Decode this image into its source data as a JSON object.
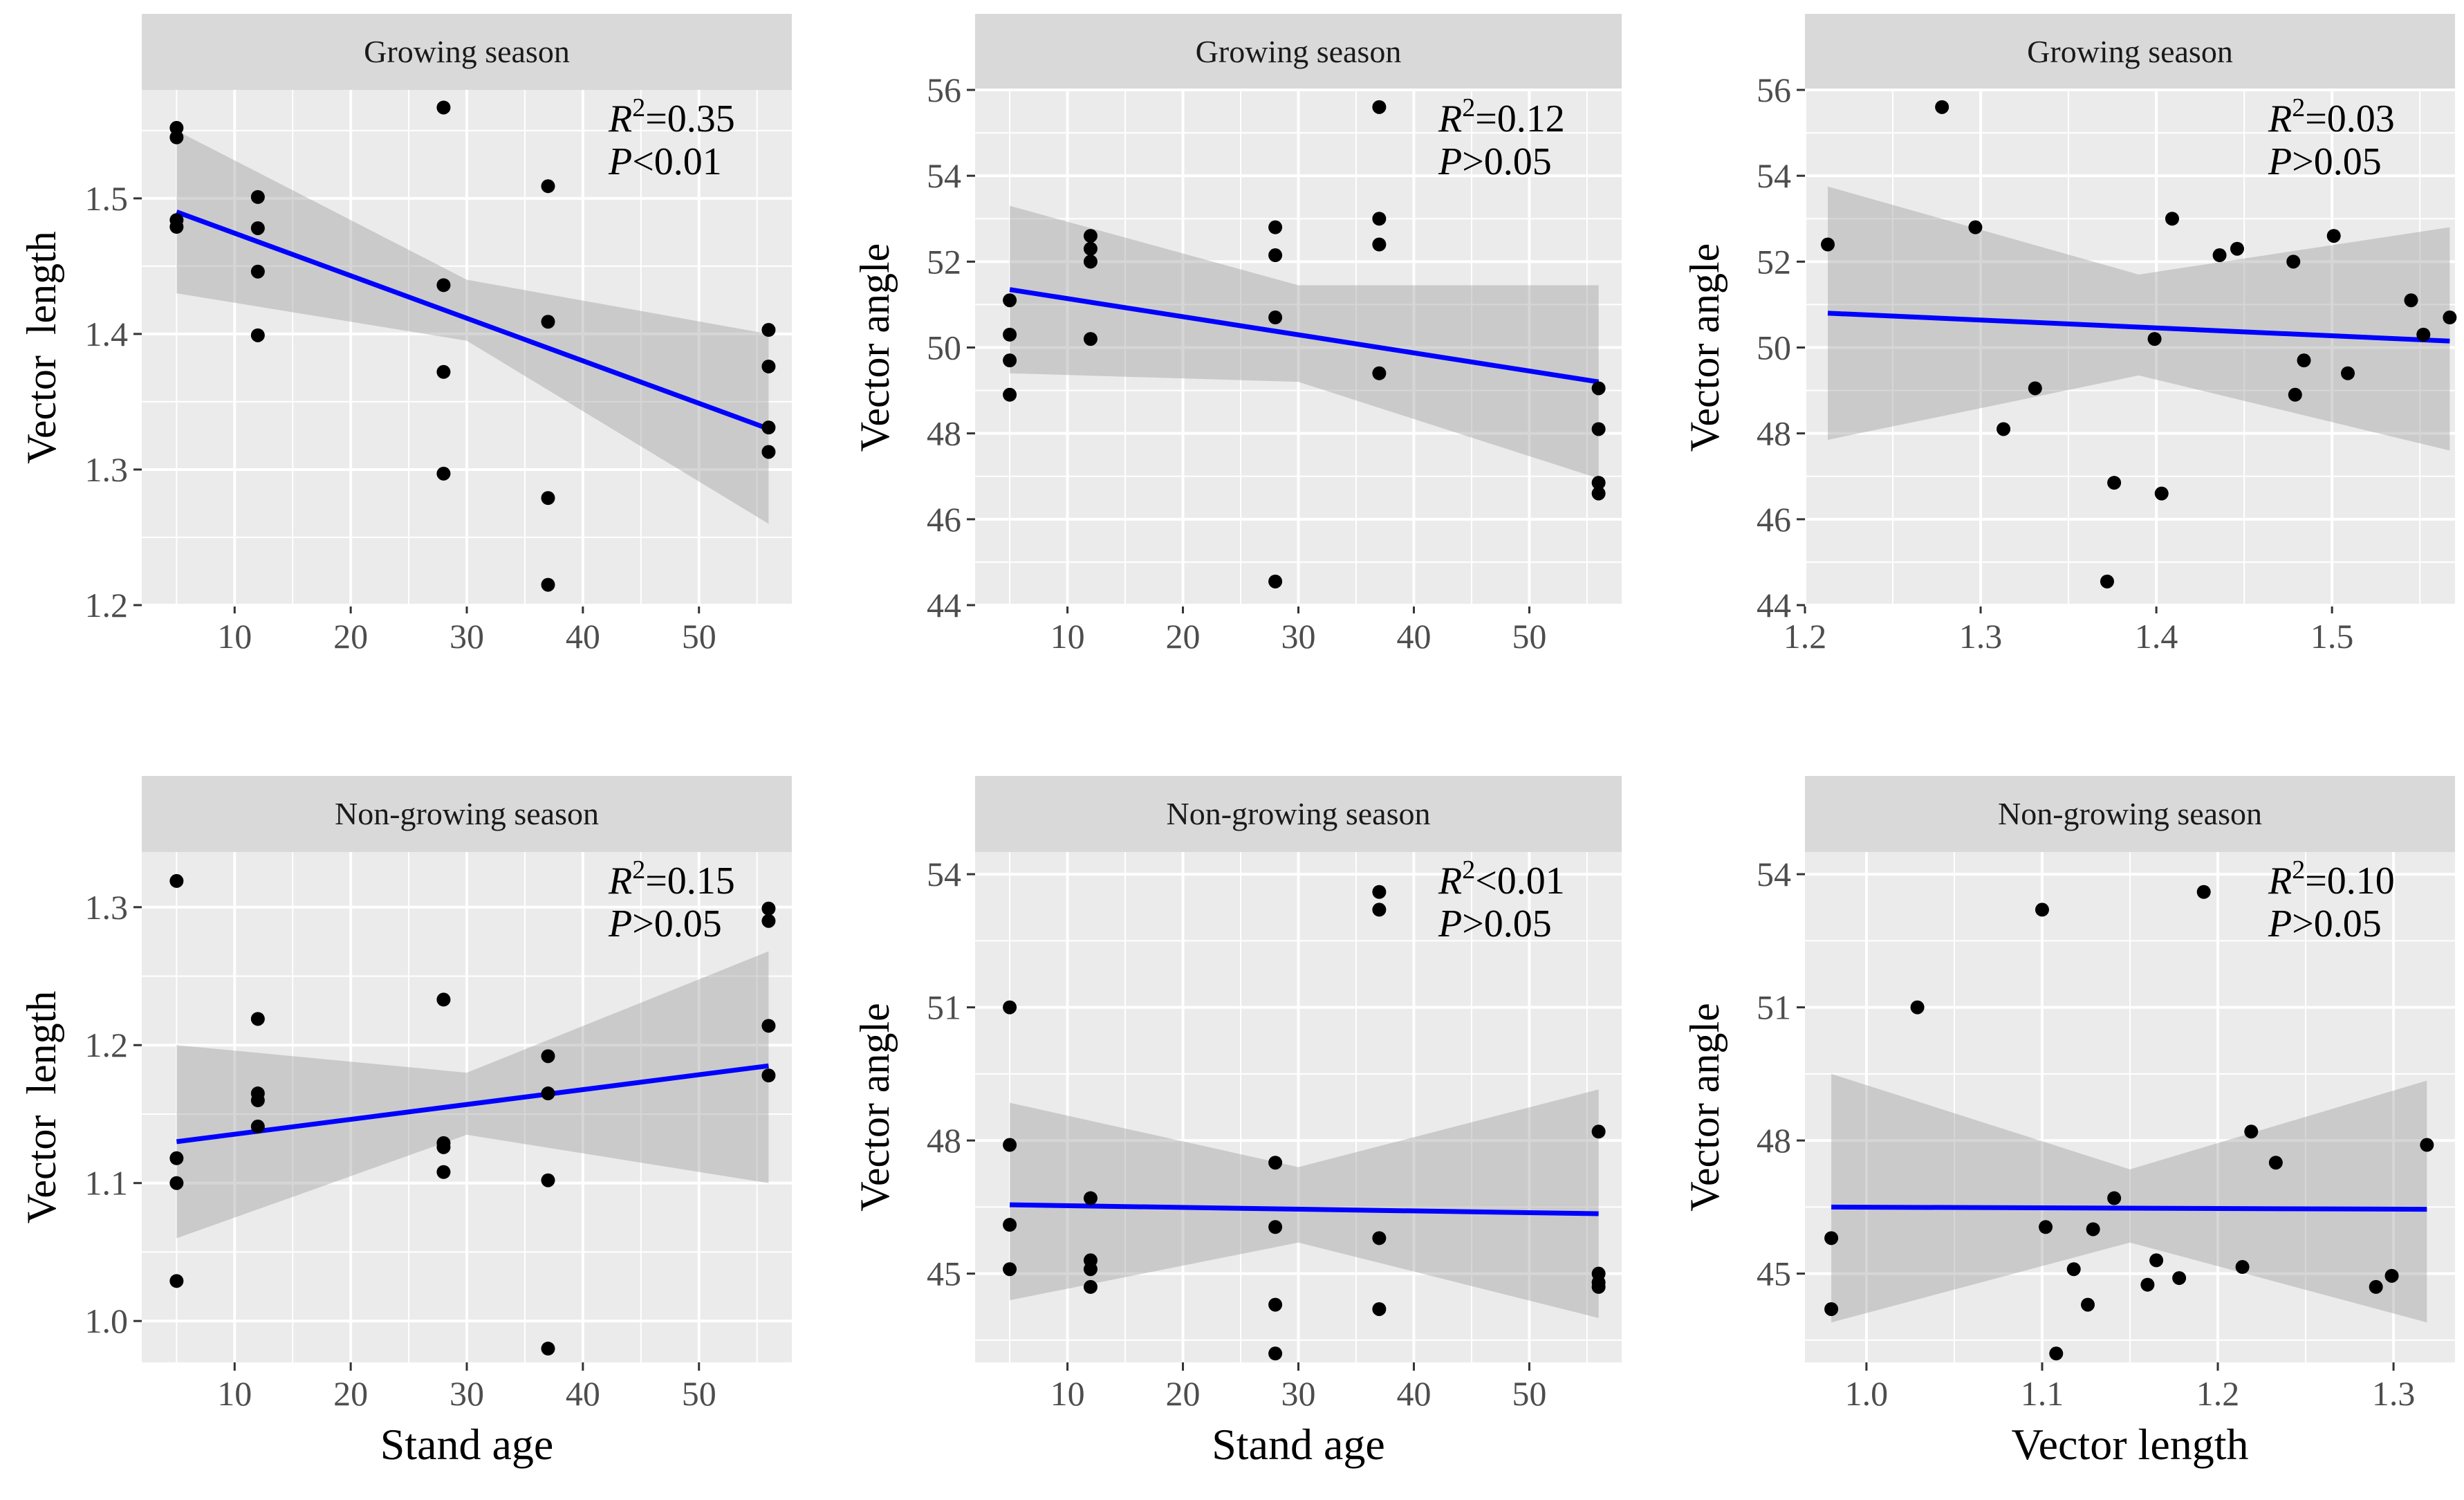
{
  "colors": {
    "panel_bg": "#EBEBEB",
    "strip_bg": "#D9D9D9",
    "grid": "#FFFFFF",
    "point": "#000000",
    "fit_line": "#0000FF",
    "ci_band": "#999999",
    "axis_text": "#4D4D4D",
    "label_text": "#000000"
  },
  "chart_data": [
    {
      "type": "scatter",
      "strip": "Growing season",
      "xlabel": "",
      "ylabel": "Vector  length",
      "xlim": [
        2,
        58
      ],
      "ylim": [
        1.2,
        1.58
      ],
      "xticks": [
        10,
        20,
        30,
        40,
        50
      ],
      "yticks": [
        1.2,
        1.3,
        1.4,
        1.5
      ],
      "x": [
        5,
        5,
        5,
        5,
        12,
        12,
        12,
        12,
        28,
        28,
        28,
        28,
        37,
        37,
        37,
        37,
        56,
        56,
        56,
        56
      ],
      "y": [
        1.552,
        1.545,
        1.484,
        1.479,
        1.501,
        1.478,
        1.446,
        1.399,
        1.567,
        1.436,
        1.372,
        1.297,
        1.509,
        1.409,
        1.279,
        1.215,
        1.403,
        1.376,
        1.331,
        1.313
      ],
      "fit": {
        "x": [
          5,
          56
        ],
        "y": [
          1.49,
          1.33
        ]
      },
      "ci": {
        "x": [
          5,
          30,
          56
        ],
        "lower": [
          1.43,
          1.395,
          1.26
        ],
        "upper": [
          1.55,
          1.44,
          1.4
        ]
      },
      "stats": {
        "r2_label": "R",
        "r2_sup": "2",
        "r2_value": "=0.35",
        "p_label": "P",
        "p_value": "<0.01"
      }
    },
    {
      "type": "scatter",
      "strip": "Growing season",
      "xlabel": "",
      "ylabel": "Vector angle",
      "xlim": [
        2,
        58
      ],
      "ylim": [
        44,
        56
      ],
      "xticks": [
        10,
        20,
        30,
        40,
        50
      ],
      "yticks": [
        44,
        46,
        48,
        50,
        52,
        54,
        56
      ],
      "x": [
        5,
        5,
        5,
        5,
        12,
        12,
        12,
        12,
        28,
        28,
        28,
        28,
        37,
        37,
        37,
        37,
        56,
        56,
        56,
        56
      ],
      "y": [
        51.1,
        50.3,
        49.7,
        48.9,
        52.6,
        52.3,
        52.0,
        50.2,
        52.8,
        52.15,
        50.7,
        44.55,
        55.6,
        53.0,
        52.4,
        49.4,
        49.05,
        48.1,
        46.85,
        46.6
      ],
      "fit": {
        "x": [
          5,
          56
        ],
        "y": [
          51.35,
          49.2
        ]
      },
      "ci": {
        "x": [
          5,
          30,
          56
        ],
        "lower": [
          49.4,
          49.2,
          46.95
        ],
        "upper": [
          53.3,
          51.45,
          51.45
        ]
      },
      "stats": {
        "r2_label": "R",
        "r2_sup": "2",
        "r2_value": "=0.12",
        "p_label": "P",
        "p_value": ">0.05"
      }
    },
    {
      "type": "scatter",
      "strip": "Growing season",
      "xlabel": "",
      "ylabel": "Vector angle",
      "xlim": [
        1.2,
        1.57
      ],
      "ylim": [
        44,
        56
      ],
      "xticks": [
        1.2,
        1.3,
        1.4,
        1.5
      ],
      "yticks": [
        44,
        46,
        48,
        50,
        52,
        54,
        56
      ],
      "x": [
        1.213,
        1.278,
        1.297,
        1.331,
        1.313,
        1.376,
        1.372,
        1.403,
        1.399,
        1.409,
        1.436,
        1.446,
        1.478,
        1.484,
        1.479,
        1.501,
        1.509,
        1.545,
        1.552,
        1.567
      ],
      "y": [
        52.4,
        55.6,
        52.8,
        49.05,
        48.1,
        46.85,
        44.55,
        46.6,
        50.2,
        53.0,
        52.15,
        52.3,
        52.0,
        49.7,
        48.9,
        52.6,
        49.4,
        51.1,
        50.3,
        50.7
      ],
      "fit": {
        "x": [
          1.213,
          1.567
        ],
        "y": [
          50.8,
          50.15
        ]
      },
      "ci": {
        "x": [
          1.213,
          1.39,
          1.567
        ],
        "lower": [
          47.85,
          49.35,
          47.6
        ],
        "upper": [
          53.75,
          51.7,
          52.8
        ]
      },
      "stats": {
        "r2_label": "R",
        "r2_sup": "2",
        "r2_value": "=0.03",
        "p_label": "P",
        "p_value": ">0.05"
      }
    },
    {
      "type": "scatter",
      "strip": "Non-growing season",
      "xlabel": "Stand age",
      "ylabel": "Vector  length",
      "xlim": [
        2,
        58
      ],
      "ylim": [
        0.97,
        1.34
      ],
      "xticks": [
        10,
        20,
        30,
        40,
        50
      ],
      "yticks": [
        1.0,
        1.1,
        1.2,
        1.3
      ],
      "x": [
        5,
        5,
        5,
        5,
        12,
        12,
        12,
        12,
        28,
        28,
        28,
        28,
        37,
        37,
        37,
        37,
        56,
        56,
        56,
        56
      ],
      "y": [
        1.319,
        1.118,
        1.1,
        1.029,
        1.219,
        1.165,
        1.16,
        1.141,
        1.233,
        1.129,
        1.126,
        1.108,
        1.192,
        1.102,
        0.98,
        1.165,
        1.299,
        1.29,
        1.214,
        1.178
      ],
      "fit": {
        "x": [
          5,
          56
        ],
        "y": [
          1.13,
          1.185
        ]
      },
      "ci": {
        "x": [
          5,
          30,
          56
        ],
        "lower": [
          1.06,
          1.135,
          1.1
        ],
        "upper": [
          1.2,
          1.18,
          1.268
        ]
      },
      "stats": {
        "r2_label": "R",
        "r2_sup": "2",
        "r2_value": "=0.15",
        "p_label": "P",
        "p_value": ">0.05"
      }
    },
    {
      "type": "scatter",
      "strip": "Non-growing season",
      "xlabel": "Stand age",
      "ylabel": "Vector angle",
      "xlim": [
        2,
        58
      ],
      "ylim": [
        43.0,
        54.5
      ],
      "xticks": [
        10,
        20,
        30,
        40,
        50
      ],
      "yticks": [
        45,
        48,
        51,
        54
      ],
      "x": [
        5,
        5,
        5,
        5,
        12,
        12,
        12,
        12,
        28,
        28,
        28,
        28,
        37,
        37,
        37,
        37,
        56,
        56,
        56,
        56
      ],
      "y": [
        51.0,
        47.9,
        46.1,
        45.1,
        46.7,
        45.3,
        45.1,
        44.7,
        47.5,
        46.05,
        44.3,
        43.2,
        53.6,
        53.2,
        45.8,
        44.2,
        48.2,
        45.0,
        44.8,
        44.7
      ],
      "fit": {
        "x": [
          5,
          56
        ],
        "y": [
          46.55,
          46.35
        ]
      },
      "ci": {
        "x": [
          5,
          30,
          56
        ],
        "lower": [
          44.4,
          45.7,
          44.0
        ],
        "upper": [
          48.85,
          47.4,
          49.15
        ]
      },
      "stats": {
        "r2_label": "R",
        "r2_sup": "2",
        "r2_value": "<0.01",
        "p_label": "P",
        "p_value": ">0.05"
      }
    },
    {
      "type": "scatter",
      "strip": "Non-growing season",
      "xlabel": "Vector length",
      "ylabel": "Vector angle",
      "xlim": [
        0.965,
        1.335
      ],
      "ylim": [
        43.0,
        54.5
      ],
      "xticks": [
        1.0,
        1.1,
        1.2,
        1.3
      ],
      "yticks": [
        45,
        48,
        51,
        54
      ],
      "x": [
        0.98,
        0.98,
        1.029,
        1.1,
        1.102,
        1.108,
        1.118,
        1.126,
        1.129,
        1.141,
        1.16,
        1.165,
        1.178,
        1.192,
        1.214,
        1.219,
        1.233,
        1.29,
        1.299,
        1.319
      ],
      "y": [
        45.8,
        44.2,
        51.0,
        53.2,
        46.05,
        43.2,
        45.1,
        44.3,
        46.0,
        46.7,
        44.75,
        45.3,
        44.9,
        53.6,
        45.15,
        48.2,
        47.5,
        44.7,
        44.95,
        47.9
      ],
      "fit": {
        "x": [
          0.98,
          1.319
        ],
        "y": [
          46.5,
          46.45
        ]
      },
      "ci": {
        "x": [
          0.98,
          1.15,
          1.319
        ],
        "lower": [
          43.9,
          45.7,
          43.9
        ],
        "upper": [
          49.5,
          47.35,
          49.35
        ]
      },
      "stats": {
        "r2_label": "R",
        "r2_sup": "2",
        "r2_value": "=0.10",
        "p_label": "P",
        "p_value": ">0.05"
      }
    }
  ]
}
